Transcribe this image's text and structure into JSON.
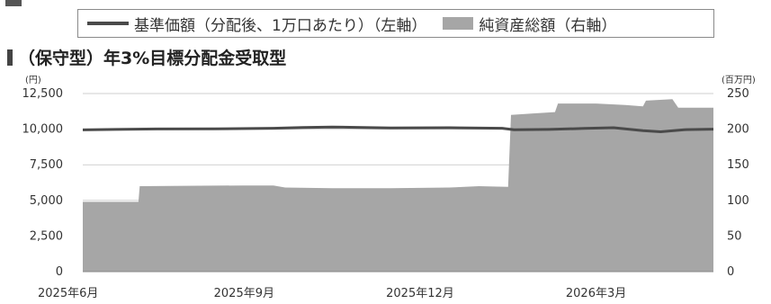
{
  "chart_data": {
    "type": "area+line",
    "subtitle": "（保守型）年3%目標分配金受取型",
    "legend": [
      {
        "name": "基準価額（分配後、1万口あたり）（左軸）",
        "kind": "line",
        "color": "#4a4a4a"
      },
      {
        "name": "純資産総額（右軸）",
        "kind": "area",
        "color": "#a6a6a6"
      }
    ],
    "y_left": {
      "unit": "(円)",
      "min": 0,
      "max": 12500,
      "ticks": [
        0,
        2500,
        5000,
        7500,
        10000,
        12500
      ],
      "tick_labels": [
        "0",
        "2,500",
        "5,000",
        "7,500",
        "10,000",
        "12,500"
      ]
    },
    "y_right": {
      "unit": "(百万円)",
      "min": 0,
      "max": 250,
      "ticks": [
        0,
        50,
        100,
        150,
        200,
        250
      ],
      "tick_labels": [
        "0",
        "50",
        "100",
        "150",
        "200",
        "250"
      ]
    },
    "x_labels": [
      {
        "label": "2025年6月",
        "month": 0
      },
      {
        "label": "2025年9月",
        "month": 3
      },
      {
        "label": "2025年12月",
        "month": 6
      },
      {
        "label": "2026年3月",
        "month": 9
      }
    ],
    "x_range": [
      0.25,
      11.0
    ],
    "grid": true,
    "net_assets_series": [
      [
        0.25,
        98
      ],
      [
        1.2,
        98
      ],
      [
        1.22,
        120
      ],
      [
        3.0,
        121
      ],
      [
        3.5,
        121
      ],
      [
        3.7,
        118
      ],
      [
        4.5,
        117
      ],
      [
        5.5,
        117
      ],
      [
        6.5,
        118
      ],
      [
        7.0,
        120
      ],
      [
        7.5,
        119
      ],
      [
        7.55,
        220
      ],
      [
        7.9,
        222
      ],
      [
        8.3,
        224
      ],
      [
        8.35,
        236
      ],
      [
        9.0,
        236
      ],
      [
        9.5,
        234
      ],
      [
        9.8,
        232
      ],
      [
        9.85,
        240
      ],
      [
        10.3,
        242
      ],
      [
        10.4,
        230
      ],
      [
        11.0,
        230
      ]
    ],
    "nav_series": [
      [
        0.25,
        9950
      ],
      [
        0.8,
        9980
      ],
      [
        1.5,
        10010
      ],
      [
        2.5,
        10020
      ],
      [
        3.5,
        10060
      ],
      [
        4.0,
        10120
      ],
      [
        4.5,
        10150
      ],
      [
        5.5,
        10090
      ],
      [
        6.5,
        10100
      ],
      [
        7.4,
        10060
      ],
      [
        7.6,
        9960
      ],
      [
        8.2,
        9980
      ],
      [
        8.8,
        10050
      ],
      [
        9.3,
        10100
      ],
      [
        9.8,
        9900
      ],
      [
        10.1,
        9820
      ],
      [
        10.5,
        9960
      ],
      [
        11.0,
        10000
      ]
    ]
  }
}
